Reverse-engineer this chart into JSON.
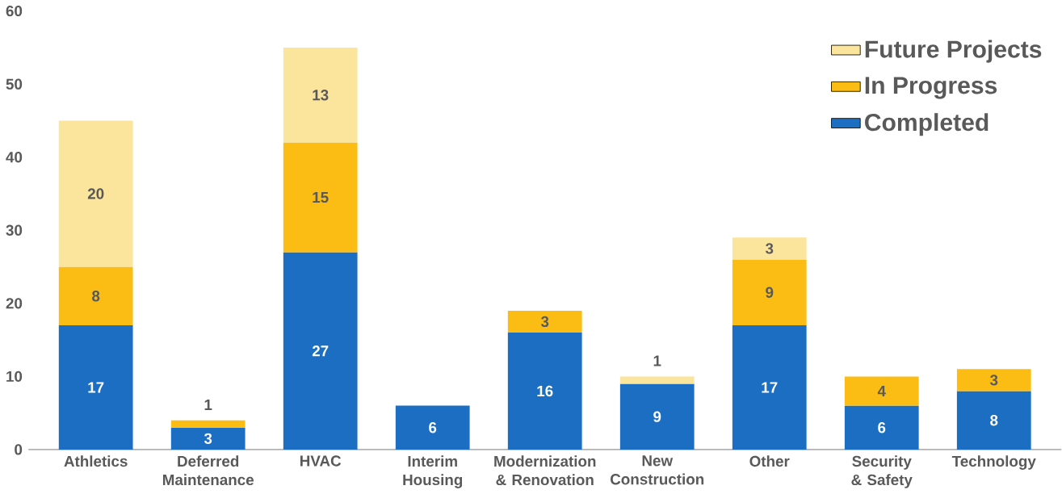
{
  "chart_data": {
    "type": "bar",
    "stacked": true,
    "categories": [
      "Athletics",
      "Deferred Maintenance",
      "HVAC",
      "Interim Housing",
      "Modernization & Renovation",
      "New Construction",
      "Other",
      "Security & Safety",
      "Technology"
    ],
    "series": [
      {
        "name": "Completed",
        "color": "#1b6ec2",
        "values": [
          17,
          3,
          27,
          6,
          16,
          9,
          17,
          6,
          8
        ]
      },
      {
        "name": "In Progress",
        "color": "#fbbd13",
        "values": [
          8,
          1,
          15,
          null,
          3,
          null,
          9,
          4,
          3
        ]
      },
      {
        "name": "Future Projects",
        "color": "#fbe49c",
        "values": [
          20,
          null,
          13,
          null,
          null,
          1,
          3,
          null,
          null
        ]
      }
    ],
    "ylim": [
      0,
      60
    ],
    "yticks": [
      0,
      10,
      20,
      30,
      40,
      50,
      60
    ],
    "legend": "top right",
    "data_labels": true
  }
}
